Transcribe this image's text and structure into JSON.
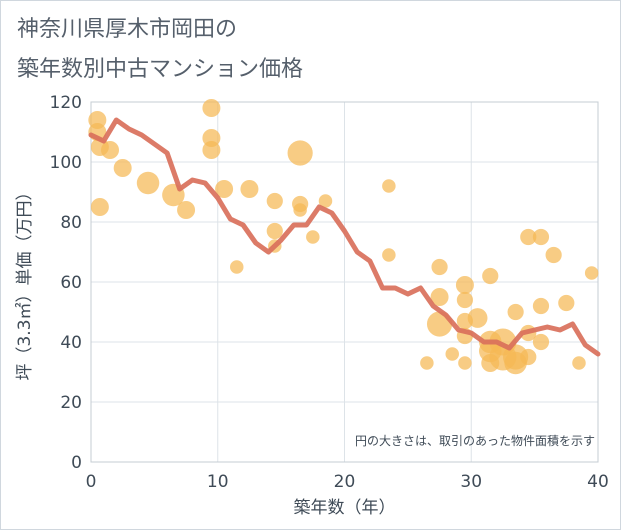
{
  "title_lines": [
    "神奈川県厚木市岡田の",
    "築年数別中古マンション価格"
  ],
  "chart_data": {
    "type": "scatter",
    "title": "神奈川県厚木市岡田の築年数別中古マンション価格",
    "xlabel": "築年数（年）",
    "ylabel": "坪（3.3㎡）単価（万円）",
    "xlim": [
      0,
      40
    ],
    "ylim": [
      0,
      120
    ],
    "x_ticks": [
      0,
      10,
      20,
      30,
      40
    ],
    "y_ticks": [
      0,
      20,
      40,
      60,
      80,
      100,
      120
    ],
    "grid": true,
    "annotation": "円の大きさは、取引のあった物件面積を示す",
    "colors": {
      "bubble": "#f5b955",
      "line": "#d9705b"
    },
    "series": [
      {
        "type": "scatter",
        "points": [
          {
            "x": 0.5,
            "y": 114,
            "size": 2
          },
          {
            "x": 0.5,
            "y": 110,
            "size": 2
          },
          {
            "x": 0.7,
            "y": 105,
            "size": 2
          },
          {
            "x": 0.7,
            "y": 85,
            "size": 2
          },
          {
            "x": 1.5,
            "y": 104,
            "size": 2
          },
          {
            "x": 2.5,
            "y": 98,
            "size": 2
          },
          {
            "x": 4.5,
            "y": 93,
            "size": 2.5
          },
          {
            "x": 6.5,
            "y": 89,
            "size": 2.5
          },
          {
            "x": 7.5,
            "y": 84,
            "size": 2
          },
          {
            "x": 9.5,
            "y": 118,
            "size": 2
          },
          {
            "x": 9.5,
            "y": 108,
            "size": 2
          },
          {
            "x": 9.5,
            "y": 104,
            "size": 2
          },
          {
            "x": 10.5,
            "y": 91,
            "size": 2
          },
          {
            "x": 11.5,
            "y": 65,
            "size": 1.5
          },
          {
            "x": 12.5,
            "y": 91,
            "size": 2
          },
          {
            "x": 14.5,
            "y": 87,
            "size": 1.8
          },
          {
            "x": 14.5,
            "y": 77,
            "size": 1.8
          },
          {
            "x": 14.5,
            "y": 72,
            "size": 1.5
          },
          {
            "x": 16.5,
            "y": 103,
            "size": 2.8
          },
          {
            "x": 16.5,
            "y": 86,
            "size": 1.8
          },
          {
            "x": 16.5,
            "y": 84,
            "size": 1.5
          },
          {
            "x": 17.5,
            "y": 75,
            "size": 1.5
          },
          {
            "x": 18.5,
            "y": 87,
            "size": 1.5
          },
          {
            "x": 23.5,
            "y": 92,
            "size": 1.5
          },
          {
            "x": 23.5,
            "y": 69,
            "size": 1.5
          },
          {
            "x": 26.5,
            "y": 33,
            "size": 1.5
          },
          {
            "x": 27.5,
            "y": 65,
            "size": 1.8
          },
          {
            "x": 27.5,
            "y": 55,
            "size": 2
          },
          {
            "x": 27.5,
            "y": 46,
            "size": 2.8
          },
          {
            "x": 28.5,
            "y": 36,
            "size": 1.5
          },
          {
            "x": 29.5,
            "y": 59,
            "size": 2
          },
          {
            "x": 29.5,
            "y": 54,
            "size": 1.8
          },
          {
            "x": 29.5,
            "y": 47,
            "size": 1.8
          },
          {
            "x": 29.5,
            "y": 42,
            "size": 1.8
          },
          {
            "x": 29.5,
            "y": 33,
            "size": 1.5
          },
          {
            "x": 30.5,
            "y": 48,
            "size": 2.2
          },
          {
            "x": 31.5,
            "y": 62,
            "size": 1.8
          },
          {
            "x": 31.5,
            "y": 40,
            "size": 2.5
          },
          {
            "x": 31.5,
            "y": 37,
            "size": 2.5
          },
          {
            "x": 31.5,
            "y": 33,
            "size": 2
          },
          {
            "x": 32.5,
            "y": 40,
            "size": 3
          },
          {
            "x": 32.5,
            "y": 35,
            "size": 3
          },
          {
            "x": 33.5,
            "y": 50,
            "size": 1.8
          },
          {
            "x": 33.5,
            "y": 35,
            "size": 2.8
          },
          {
            "x": 33.5,
            "y": 33,
            "size": 2.5
          },
          {
            "x": 34.5,
            "y": 75,
            "size": 1.8
          },
          {
            "x": 34.5,
            "y": 43,
            "size": 1.8
          },
          {
            "x": 34.5,
            "y": 35,
            "size": 1.8
          },
          {
            "x": 35.5,
            "y": 75,
            "size": 1.8
          },
          {
            "x": 35.5,
            "y": 52,
            "size": 1.8
          },
          {
            "x": 35.5,
            "y": 40,
            "size": 1.8
          },
          {
            "x": 36.5,
            "y": 69,
            "size": 1.8
          },
          {
            "x": 37.5,
            "y": 53,
            "size": 1.8
          },
          {
            "x": 38.5,
            "y": 33,
            "size": 1.5
          },
          {
            "x": 39.5,
            "y": 63,
            "size": 1.5
          }
        ]
      },
      {
        "type": "line",
        "x": [
          0,
          1,
          2,
          3,
          4,
          5,
          6,
          7,
          8,
          9,
          10,
          11,
          12,
          13,
          14,
          15,
          16,
          17,
          18,
          19,
          20,
          21,
          22,
          23,
          24,
          25,
          26,
          27,
          28,
          29,
          30,
          31,
          32,
          33,
          34,
          35,
          36,
          37,
          38,
          39,
          40
        ],
        "y": [
          109,
          107,
          114,
          111,
          109,
          106,
          103,
          91,
          94,
          93,
          88,
          81,
          79,
          73,
          70,
          74,
          79,
          79,
          85,
          83,
          77,
          70,
          67,
          58,
          58,
          56,
          58,
          52,
          49,
          44,
          43,
          40,
          40,
          38,
          43,
          44,
          45,
          44,
          46,
          39,
          36
        ]
      }
    ]
  }
}
